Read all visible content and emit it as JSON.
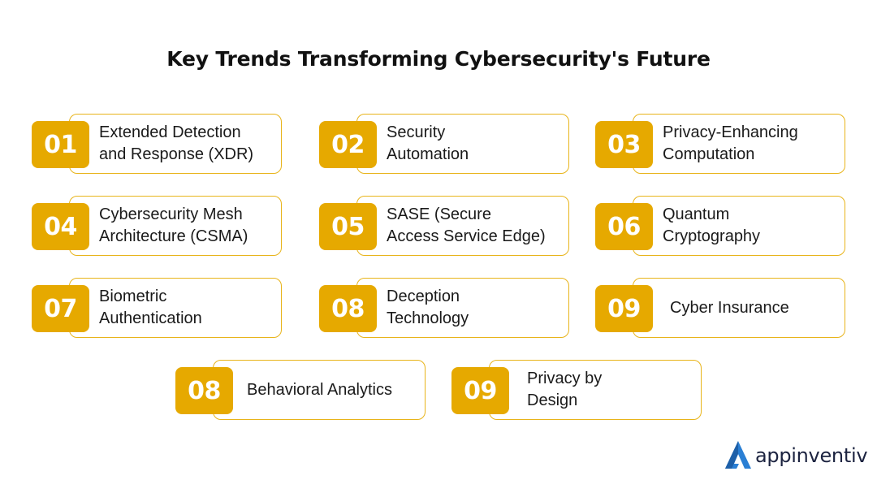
{
  "title": "Key Trends Transforming Cybersecurity's Future",
  "items": [
    {
      "num": "01",
      "label": "Extended Detection\nand Response (XDR)"
    },
    {
      "num": "02",
      "label": "Security\nAutomation"
    },
    {
      "num": "03",
      "label": "Privacy-Enhancing\nComputation"
    },
    {
      "num": "04",
      "label": "Cybersecurity Mesh\nArchitecture (CSMA)"
    },
    {
      "num": "05",
      "label": "SASE (Secure\nAccess Service Edge)"
    },
    {
      "num": "06",
      "label": "Quantum\nCryptography"
    },
    {
      "num": "07",
      "label": "Biometric\nAuthentication"
    },
    {
      "num": "08",
      "label": "Deception\nTechnology"
    },
    {
      "num": "09",
      "label": "Cyber Insurance"
    },
    {
      "num": "08",
      "label": "Behavioral Analytics"
    },
    {
      "num": "09",
      "label": "Privacy by\nDesign"
    }
  ],
  "brand": {
    "name": "appinventiv",
    "icon": "appinventiv-logo-icon",
    "accent": "#e6a900",
    "logo_color": "#2a7fd4"
  }
}
